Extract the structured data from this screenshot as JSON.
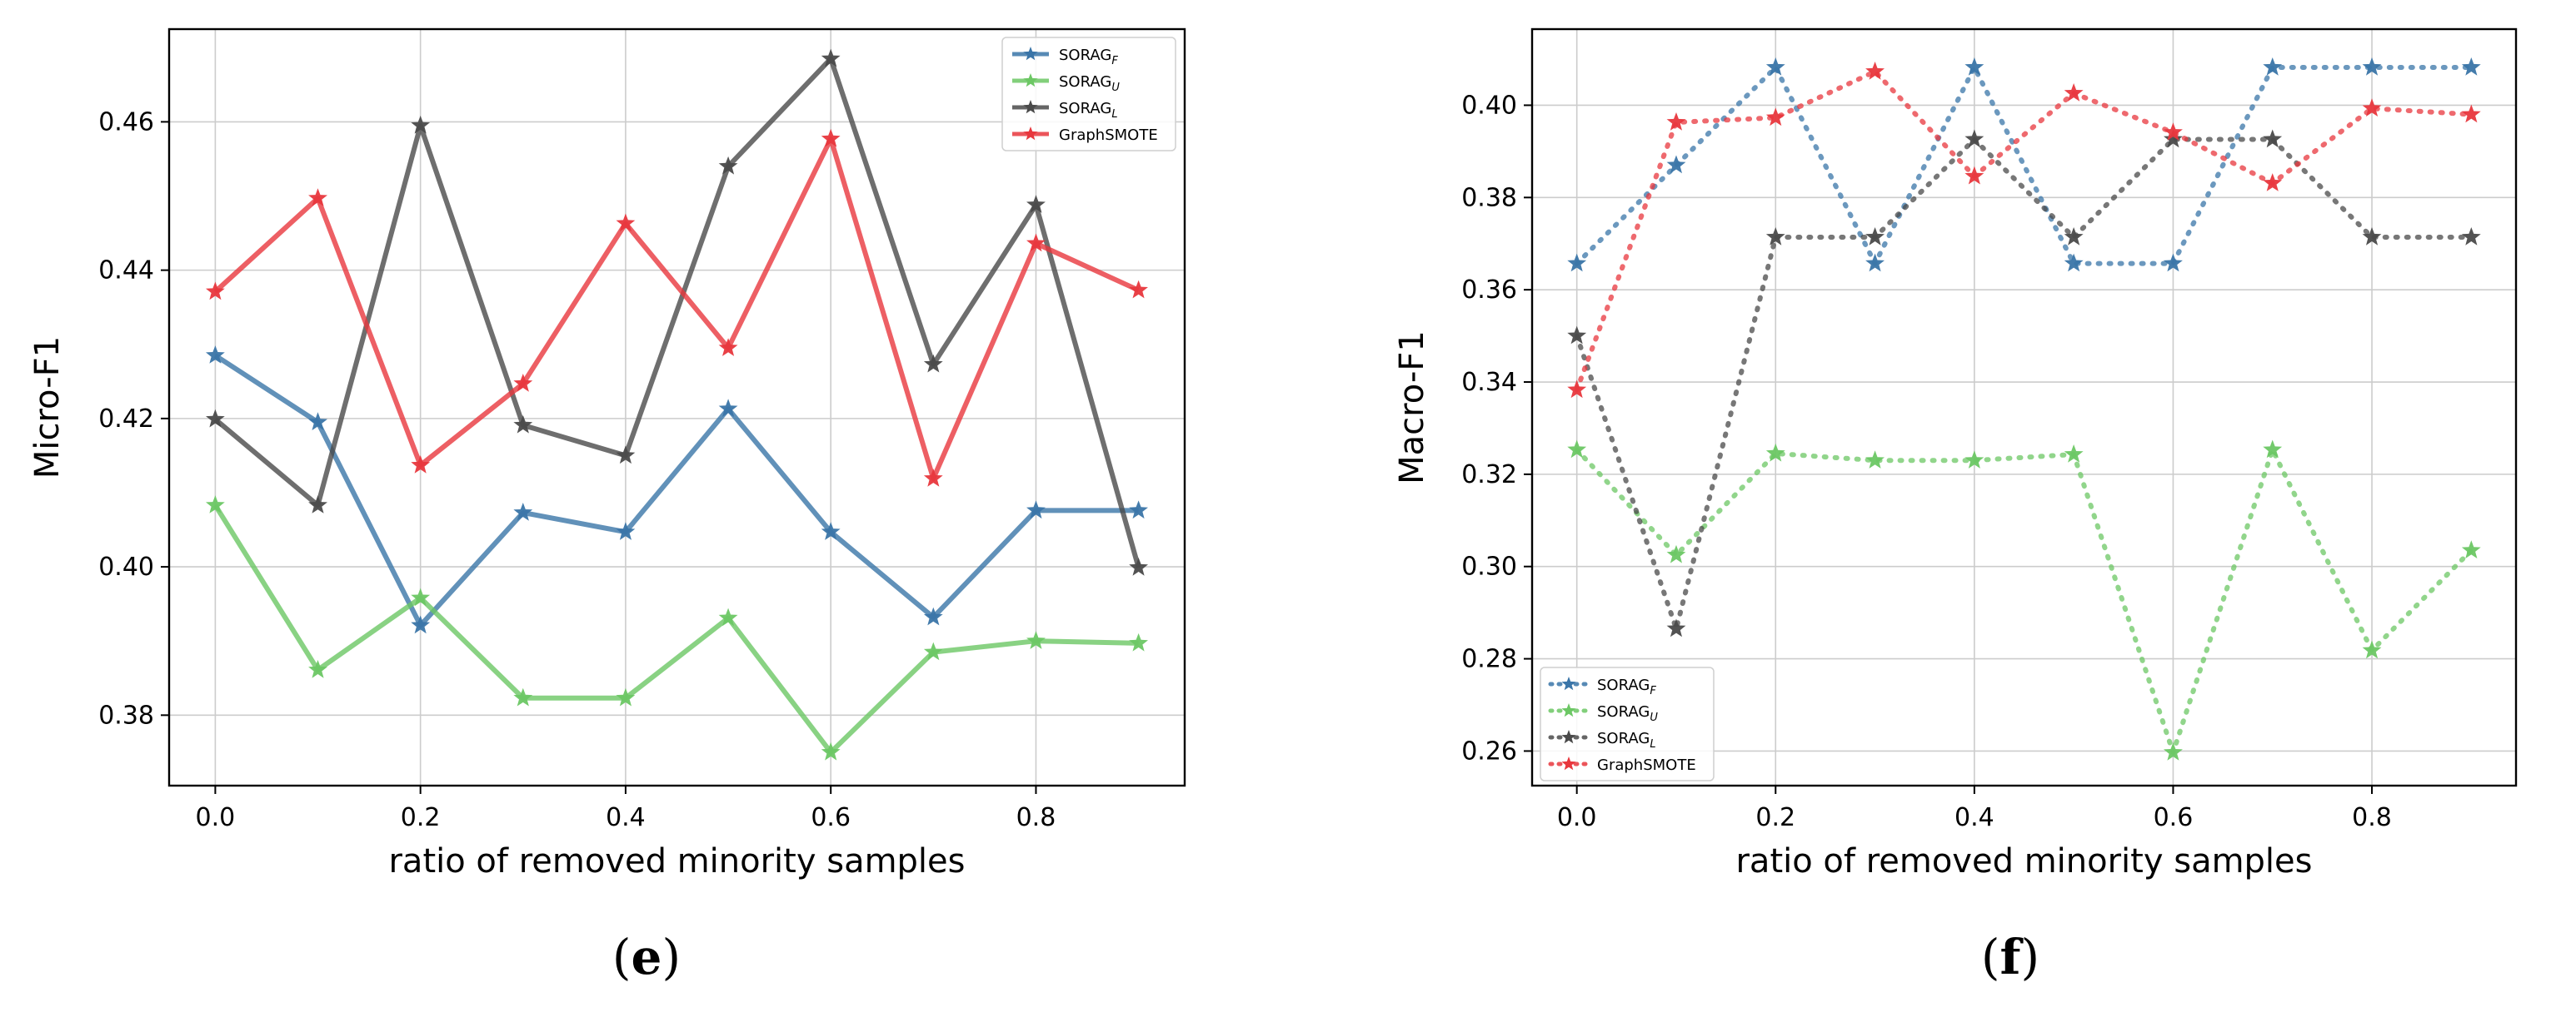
{
  "chart_data": [
    {
      "type": "line",
      "panel": "e",
      "line_style": "solid",
      "caption_open": "(",
      "caption_letter": "e",
      "caption_close": ")",
      "xlabel": "ratio of removed minority samples",
      "ylabel": "Micro-F1",
      "x": [
        0.0,
        0.1,
        0.2,
        0.3,
        0.4,
        0.5,
        0.6,
        0.7,
        0.8,
        0.9
      ],
      "xlim": [
        -0.045,
        0.945
      ],
      "ylim": [
        0.3705,
        0.4725
      ],
      "xticks": [
        0.0,
        0.2,
        0.4,
        0.6,
        0.8
      ],
      "xtick_labels": [
        "0.0",
        "0.2",
        "0.4",
        "0.6",
        "0.8"
      ],
      "yticks": [
        0.38,
        0.4,
        0.42,
        0.44,
        0.46
      ],
      "ytick_labels": [
        "0.38",
        "0.40",
        "0.42",
        "0.44",
        "0.46"
      ],
      "grid": true,
      "legend_position": "top-right",
      "series": [
        {
          "name_base": "SORAG",
          "name_sub": "F",
          "color": "#3a75a8",
          "values": [
            0.4285,
            0.4195,
            0.3921,
            0.4073,
            0.4047,
            0.4213,
            0.4047,
            0.3932,
            0.4076,
            0.4076
          ]
        },
        {
          "name_base": "SORAG",
          "name_sub": "U",
          "color": "#6cc764",
          "values": [
            0.4083,
            0.3861,
            0.3958,
            0.3823,
            0.3823,
            0.3931,
            0.375,
            0.3885,
            0.39,
            0.3897
          ]
        },
        {
          "name_base": "SORAG",
          "name_sub": "L",
          "color": "#4a4a4a",
          "values": [
            0.4199,
            0.4083,
            0.4595,
            0.4191,
            0.415,
            0.454,
            0.4685,
            0.4273,
            0.4488,
            0.3999
          ]
        },
        {
          "name_base": "GraphSMOTE",
          "name_sub": "",
          "color": "#e8373d",
          "values": [
            0.4371,
            0.4497,
            0.4137,
            0.4247,
            0.4463,
            0.4295,
            0.4577,
            0.4119,
            0.4436,
            0.4373
          ]
        }
      ]
    },
    {
      "type": "line",
      "panel": "f",
      "line_style": "dotted",
      "caption_open": "(",
      "caption_letter": "f",
      "caption_close": ")",
      "xlabel": "ratio of removed minority samples",
      "ylabel": "Macro-F1",
      "x": [
        0.0,
        0.1,
        0.2,
        0.3,
        0.4,
        0.5,
        0.6,
        0.7,
        0.8,
        0.9
      ],
      "xlim": [
        -0.045,
        0.945
      ],
      "ylim": [
        0.2525,
        0.4165
      ],
      "xticks": [
        0.0,
        0.2,
        0.4,
        0.6,
        0.8
      ],
      "xtick_labels": [
        "0.0",
        "0.2",
        "0.4",
        "0.6",
        "0.8"
      ],
      "yticks": [
        0.26,
        0.28,
        0.3,
        0.32,
        0.34,
        0.36,
        0.38,
        0.4
      ],
      "ytick_labels": [
        "0.26",
        "0.28",
        "0.30",
        "0.32",
        "0.34",
        "0.36",
        "0.38",
        "0.40"
      ],
      "grid": true,
      "legend_position": "bottom-left",
      "series": [
        {
          "name_base": "SORAG",
          "name_sub": "F",
          "color": "#3a75a8",
          "values": [
            0.3657,
            0.387,
            0.4082,
            0.3657,
            0.4082,
            0.3657,
            0.3657,
            0.4082,
            0.4082,
            0.4082
          ]
        },
        {
          "name_base": "SORAG",
          "name_sub": "U",
          "color": "#6cc764",
          "values": [
            0.3253,
            0.3025,
            0.3245,
            0.323,
            0.323,
            0.3243,
            0.2597,
            0.3253,
            0.2818,
            0.3035
          ]
        },
        {
          "name_base": "SORAG",
          "name_sub": "L",
          "color": "#4a4a4a",
          "values": [
            0.35,
            0.2865,
            0.3714,
            0.3714,
            0.3926,
            0.3714,
            0.3926,
            0.3926,
            0.3714,
            0.3714
          ]
        },
        {
          "name_base": "GraphSMOTE",
          "name_sub": "",
          "color": "#e8373d",
          "values": [
            0.3383,
            0.3963,
            0.3973,
            0.4073,
            0.3846,
            0.4026,
            0.3941,
            0.3831,
            0.3993,
            0.398
          ]
        }
      ]
    }
  ]
}
